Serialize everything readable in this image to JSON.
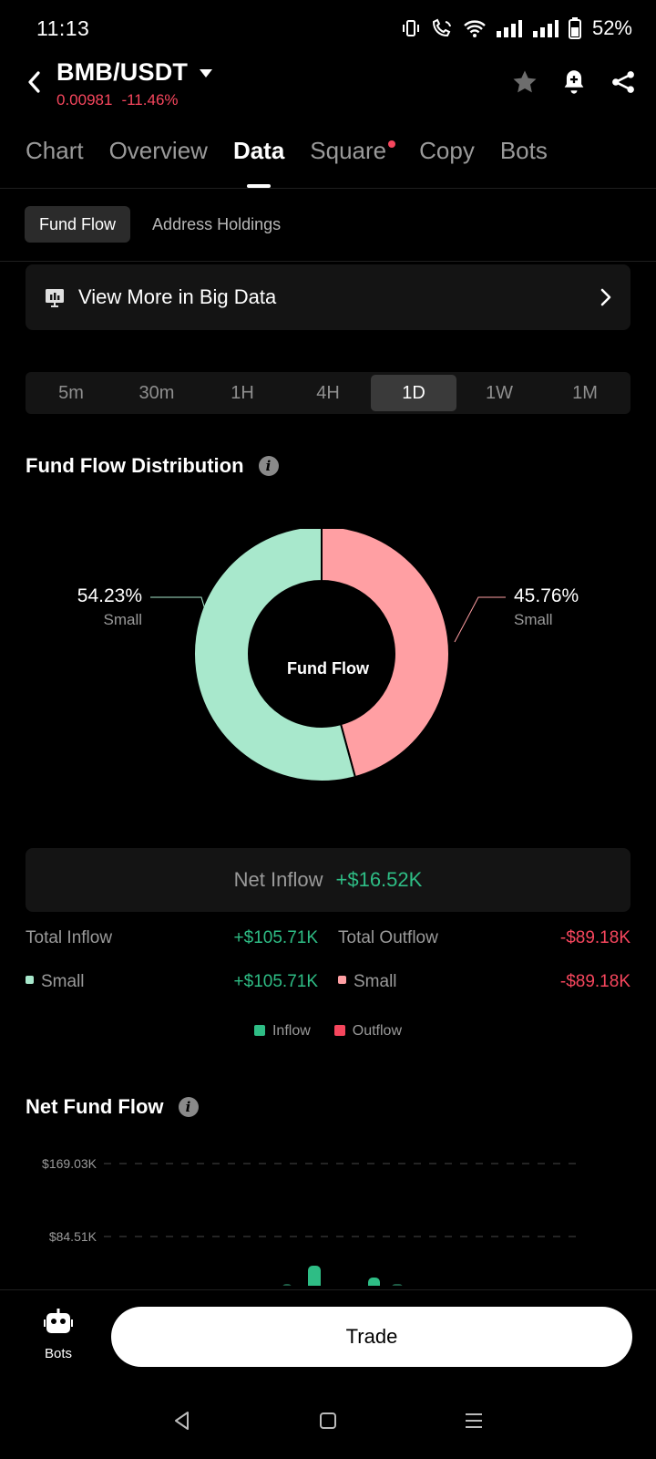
{
  "status_bar": {
    "time": "11:13",
    "battery": "52%"
  },
  "header": {
    "pair": "BMB/USDT",
    "price": "0.00981",
    "change": "-11.46%"
  },
  "main_tabs": [
    {
      "label": "Chart"
    },
    {
      "label": "Overview"
    },
    {
      "label": "Data"
    },
    {
      "label": "Square"
    },
    {
      "label": "Copy"
    },
    {
      "label": "Bots"
    }
  ],
  "sub_tabs": [
    {
      "label": "Fund Flow"
    },
    {
      "label": "Address Holdings"
    }
  ],
  "big_data": {
    "label": "View More in Big Data"
  },
  "periods": [
    {
      "label": "5m"
    },
    {
      "label": "30m"
    },
    {
      "label": "1H"
    },
    {
      "label": "4H"
    },
    {
      "label": "1D"
    },
    {
      "label": "1W"
    },
    {
      "label": "1M"
    }
  ],
  "distribution": {
    "title": "Fund Flow Distribution",
    "center_label": "Fund Flow",
    "inflow": {
      "pct": "54.23%",
      "name": "Small",
      "value": 54.23,
      "color": "#a8e8cc"
    },
    "outflow": {
      "pct": "45.76%",
      "name": "Small",
      "value": 45.76,
      "color": "#ff9fa3"
    }
  },
  "net_inflow": {
    "label": "Net Inflow",
    "value": "+$16.52K"
  },
  "flows": {
    "total_inflow_label": "Total Inflow",
    "total_inflow_value": "+$105.71K",
    "total_outflow_label": "Total Outflow",
    "total_outflow_value": "-$89.18K",
    "small_in_label": "Small",
    "small_in_value": "+$105.71K",
    "small_out_label": "Small",
    "small_out_value": "-$89.18K"
  },
  "legend": {
    "inflow": "Inflow",
    "outflow": "Outflow",
    "inflow_color": "#2ebd85",
    "outflow_color": "#f6465d"
  },
  "net_fund_flow": {
    "title": "Net Fund Flow",
    "y_ticks": [
      "$169.03K",
      "$84.51K"
    ]
  },
  "bottom": {
    "bots_label": "Bots",
    "trade_label": "Trade"
  }
}
